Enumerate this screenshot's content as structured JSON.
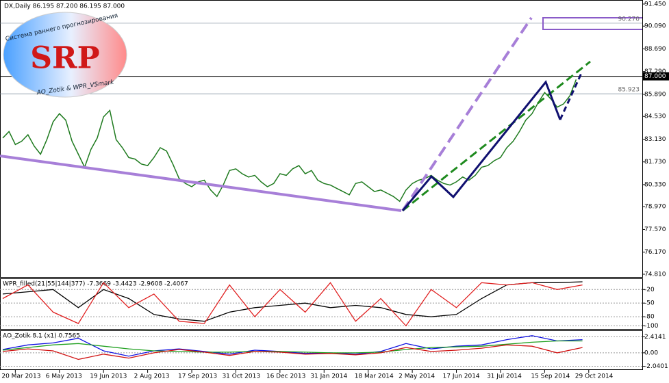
{
  "chart_data": [
    {
      "type": "line",
      "title": "DX,Daily  86.195 87.200 86.195 87.000",
      "xlim": [
        -0.43,
        101.5
      ],
      "xticks": [
        {
          "value": 2,
          "label": "20 Mar 2013"
        },
        {
          "value": 9,
          "label": "6 May 2013"
        },
        {
          "value": 16,
          "label": "19 Jun 2013"
        },
        {
          "value": 23,
          "label": "2 Aug 2013"
        },
        {
          "value": 30,
          "label": "17 Sep 2013"
        },
        {
          "value": 37,
          "label": "31 Oct 2013"
        },
        {
          "value": 44,
          "label": "16 Dec 2013"
        },
        {
          "value": 51,
          "label": "31 Jan 2014"
        },
        {
          "value": 58,
          "label": "18 Mar 2014"
        },
        {
          "value": 65,
          "label": "2 May 2014"
        },
        {
          "value": 72,
          "label": "17 Jun 2014"
        },
        {
          "value": 79,
          "label": "31 Jul 2014"
        },
        {
          "value": 86,
          "label": "15 Sep 2014"
        },
        {
          "value": 93,
          "label": "29 Oct 2014"
        }
      ],
      "ylim": [
        74.64,
        91.7
      ],
      "yticks": [
        {
          "value": 91.45,
          "label": "91.450"
        },
        {
          "value": 90.09,
          "label": "90.090"
        },
        {
          "value": 88.69,
          "label": "88.690"
        },
        {
          "value": 87.29,
          "label": "87.290"
        },
        {
          "value": 85.89,
          "label": "85.890"
        },
        {
          "value": 84.53,
          "label": "84.530"
        },
        {
          "value": 83.13,
          "label": "83.130"
        },
        {
          "value": 81.73,
          "label": "81.730"
        },
        {
          "value": 80.33,
          "label": "80.330"
        },
        {
          "value": 78.97,
          "label": "78.970"
        },
        {
          "value": 77.57,
          "label": "77.570"
        },
        {
          "value": 76.17,
          "label": "76.170"
        },
        {
          "value": 74.81,
          "label": "74.810"
        }
      ],
      "levels": [
        {
          "value": 90.27,
          "label": "90.270"
        },
        {
          "value": 87,
          "label": "87.000"
        },
        85.923
      ],
      "series": [
        {
          "color": "#1e7a1e",
          "values": [
            83.2,
            83.6,
            82.8,
            83.0,
            83.4,
            82.7,
            82.2,
            83.1,
            84.2,
            84.7,
            84.3,
            83.0,
            82.2,
            81.4,
            82.5,
            83.2,
            84.5,
            84.9,
            83.1,
            82.6,
            82.0,
            81.9,
            81.6,
            81.5,
            82.0,
            82.6,
            82.4,
            81.6,
            80.7,
            80.4,
            80.2,
            80.5,
            80.6,
            80.0,
            79.6,
            80.3,
            81.2,
            81.3,
            81.0,
            80.8,
            80.9,
            80.5,
            80.2,
            80.4,
            81.0,
            80.9,
            81.3,
            81.5,
            81.0,
            81.2,
            80.6,
            80.4,
            80.3,
            80.1,
            79.9,
            79.7,
            80.4,
            80.5,
            80.2,
            79.9,
            80.0,
            79.8,
            79.6,
            79.3,
            80.0,
            80.4,
            80.6,
            80.7,
            80.9,
            80.6,
            80.4,
            80.3,
            80.5,
            80.8,
            80.6,
            80.9,
            81.4,
            81.5,
            81.8,
            82.0,
            82.6,
            83.0,
            83.6,
            84.3,
            84.7,
            85.4,
            86.0,
            85.6,
            85.1,
            85.3,
            85.8,
            86.8
          ]
        }
      ]
    },
    {
      "type": "line",
      "title": "WPR_filled(21|55|144|377)  -7.3669  -3.4423  -2.9608  -2.4067",
      "x": [
        0,
        4,
        8,
        12,
        16,
        20,
        24,
        28,
        32,
        36,
        40,
        44,
        48,
        52,
        56,
        60,
        64,
        68,
        72,
        76,
        80,
        84,
        88,
        92
      ],
      "ylim": [
        -107,
        3
      ],
      "yticks": [
        -20,
        -50,
        -80,
        -100
      ],
      "series": [
        {
          "color": "#000000",
          "values": [
            -30,
            -25,
            -20,
            -60,
            -20,
            -40,
            -75,
            -85,
            -90,
            -70,
            -60,
            -55,
            -50,
            -60,
            -55,
            -60,
            -75,
            -80,
            -75,
            -40,
            -10,
            -5,
            -5,
            -3
          ]
        },
        {
          "color": "#e02020",
          "values": [
            -40,
            -10,
            -70,
            -95,
            -5,
            -60,
            -30,
            -90,
            -95,
            -10,
            -80,
            -20,
            -70,
            -5,
            -90,
            -40,
            -100,
            -20,
            -60,
            -5,
            -10,
            -5,
            -20,
            -10
          ]
        }
      ]
    },
    {
      "type": "line",
      "title": "AO_Zotik 8.1 (x1) 0.7565",
      "x": [
        0,
        4,
        8,
        12,
        16,
        20,
        24,
        28,
        32,
        36,
        40,
        44,
        48,
        52,
        56,
        60,
        64,
        68,
        72,
        76,
        80,
        84,
        88,
        92
      ],
      "ylim": [
        -2.5,
        3.3
      ],
      "yticks": [
        2.4141,
        {
          "value": 0,
          "label": "0.00"
        },
        -2.0401
      ],
      "series": [
        {
          "color": "#1010e0",
          "values": [
            0.5,
            1.2,
            1.5,
            2.2,
            0.3,
            -0.5,
            0.3,
            0.6,
            0.2,
            -0.2,
            0.4,
            0.2,
            -0.1,
            0,
            -0.2,
            0.2,
            1.4,
            0.6,
            1.0,
            1.2,
            2.0,
            2.6,
            1.8,
            2.0
          ]
        },
        {
          "color": "#20a020",
          "values": [
            0.4,
            0.8,
            1.2,
            1.4,
            1.0,
            0.6,
            0.3,
            0.2,
            0.1,
            0.1,
            0.2,
            0.2,
            0.1,
            0.0,
            0.0,
            0.1,
            0.5,
            0.8,
            0.9,
            1.0,
            1.3,
            1.6,
            1.8,
            1.8
          ]
        },
        {
          "color": "#d01010",
          "values": [
            0.2,
            0.6,
            0.3,
            -1.0,
            -0.2,
            -0.8,
            0.0,
            0.5,
            0.1,
            -0.4,
            0.2,
            0.1,
            -0.2,
            -0.1,
            -0.3,
            0.0,
            0.8,
            0.2,
            0.4,
            0.7,
            1.2,
            1.0,
            0.0,
            0.8
          ]
        }
      ]
    }
  ],
  "logo": {
    "mark": "SRP",
    "arc_text": "Система раннего прогнозирования",
    "footer": "AO_Zotik & WPR_VSmark"
  }
}
